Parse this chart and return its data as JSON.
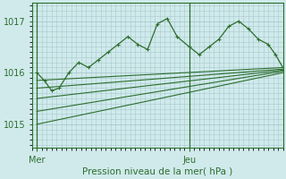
{
  "background_color": "#d0eaec",
  "grid_color": "#a8c8cc",
  "line_color": "#2d6e2d",
  "text_color": "#2d6e2d",
  "xlabel": "Pression niveau de la mer( hPa )",
  "x_tick_labels": [
    "Mer",
    "Jeu"
  ],
  "x_tick_positions": [
    0.0,
    0.62
  ],
  "ylim": [
    1014.55,
    1017.35
  ],
  "yticks": [
    1015,
    1016,
    1017
  ],
  "xlim": [
    -0.02,
    1.0
  ],
  "vline_x": [
    0.0,
    0.62
  ],
  "jagged_x": [
    0.0,
    0.03,
    0.06,
    0.09,
    0.13,
    0.17,
    0.21,
    0.25,
    0.29,
    0.33,
    0.37,
    0.41,
    0.45,
    0.49,
    0.53,
    0.57,
    0.62,
    0.66,
    0.7,
    0.74,
    0.78,
    0.82,
    0.86,
    0.9,
    0.94,
    0.97,
    1.0
  ],
  "jagged_y": [
    1016.0,
    1015.85,
    1015.65,
    1015.7,
    1016.0,
    1016.2,
    1016.1,
    1016.25,
    1016.4,
    1016.55,
    1016.7,
    1016.55,
    1016.45,
    1016.95,
    1017.05,
    1016.7,
    1016.5,
    1016.35,
    1016.5,
    1016.65,
    1016.9,
    1017.0,
    1016.85,
    1016.65,
    1016.55,
    1016.35,
    1016.1
  ],
  "smooth_lines": [
    {
      "x": [
        0.0,
        1.0
      ],
      "y": [
        1015.85,
        1016.1
      ]
    },
    {
      "x": [
        0.0,
        1.0
      ],
      "y": [
        1015.7,
        1016.07
      ]
    },
    {
      "x": [
        0.0,
        1.0
      ],
      "y": [
        1015.5,
        1016.05
      ]
    },
    {
      "x": [
        0.0,
        1.0
      ],
      "y": [
        1015.25,
        1016.03
      ]
    },
    {
      "x": [
        0.0,
        1.0
      ],
      "y": [
        1015.0,
        1016.0
      ]
    }
  ]
}
